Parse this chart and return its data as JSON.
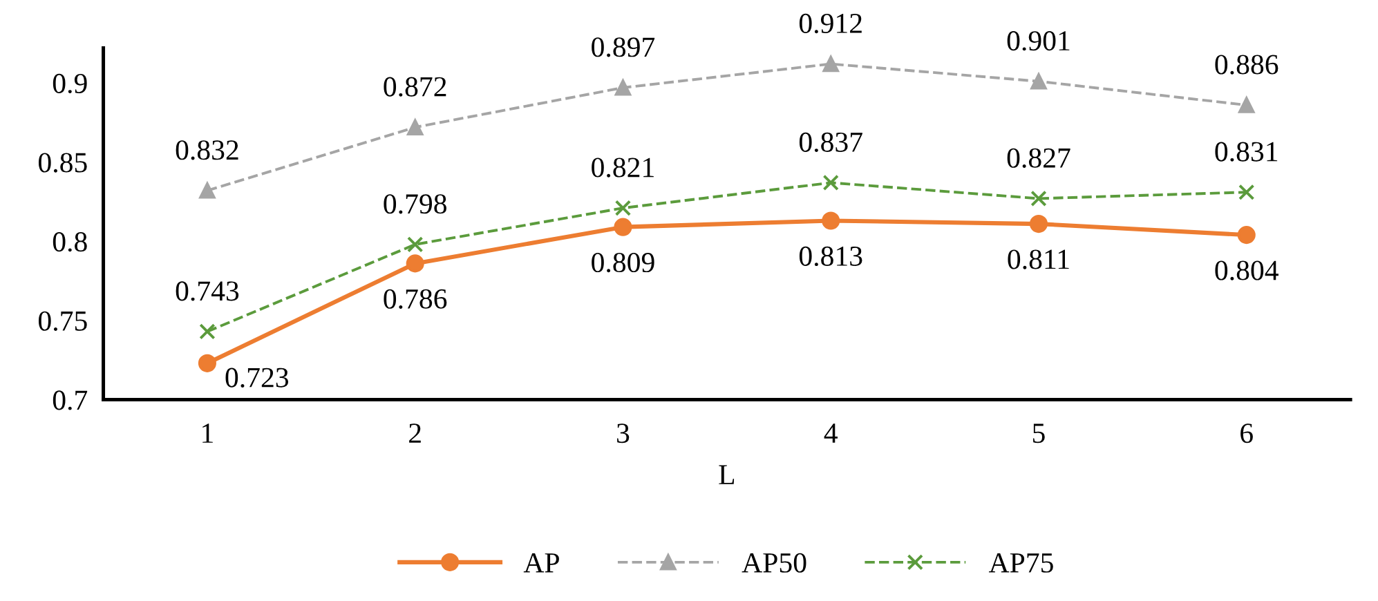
{
  "chart_data": {
    "type": "line",
    "xlabel": "L",
    "categories": [
      "1",
      "2",
      "3",
      "4",
      "5",
      "6"
    ],
    "series": [
      {
        "name": "AP",
        "color": "#ed7d31",
        "marker": "circle",
        "line_style": "solid",
        "values": [
          0.723,
          0.786,
          0.809,
          0.813,
          0.811,
          0.804
        ]
      },
      {
        "name": "AP50",
        "color": "#a5a5a5",
        "marker": "triangle",
        "line_style": "dashed",
        "values": [
          0.832,
          0.872,
          0.897,
          0.912,
          0.901,
          0.886
        ]
      },
      {
        "name": "AP75",
        "color": "#5b9b3c",
        "marker": "cross",
        "line_style": "dashed",
        "values": [
          0.743,
          0.798,
          0.821,
          0.837,
          0.827,
          0.831
        ]
      }
    ],
    "ylim": [
      0.7,
      0.922
    ],
    "yticks": [
      0.7,
      0.75,
      0.8,
      0.85,
      0.9
    ],
    "data_labels": true,
    "grid": false,
    "legend": "bottom"
  }
}
